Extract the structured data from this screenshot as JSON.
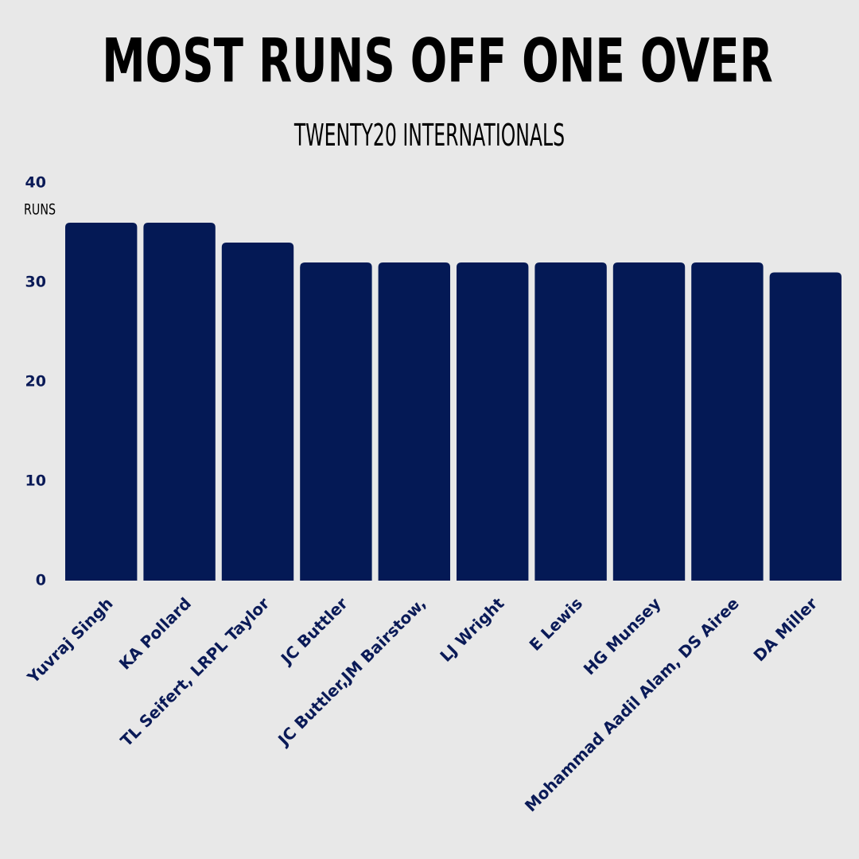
{
  "chart_data": {
    "type": "bar",
    "title": "MOST RUNS OFF ONE OVER",
    "subtitle": "TWENTY20 INTERNATIONALS",
    "y_label": "RUNS",
    "categories": [
      "Yuvraj Singh",
      "KA Pollard",
      "TL Seifert, LRPL Taylor",
      "JC Buttler",
      "JC Buttler,JM Bairstow,",
      "LJ Wright",
      "E Lewis",
      "HG Munsey",
      "Mohammad Aadil Alam, DS Airee",
      "DA Miller"
    ],
    "values": [
      36,
      36,
      34,
      32,
      32,
      32,
      32,
      32,
      32,
      31
    ],
    "color": "#041955",
    "ylim": [
      0,
      40
    ],
    "yticks": [
      0,
      10,
      20,
      30,
      40
    ],
    "grid": false
  }
}
